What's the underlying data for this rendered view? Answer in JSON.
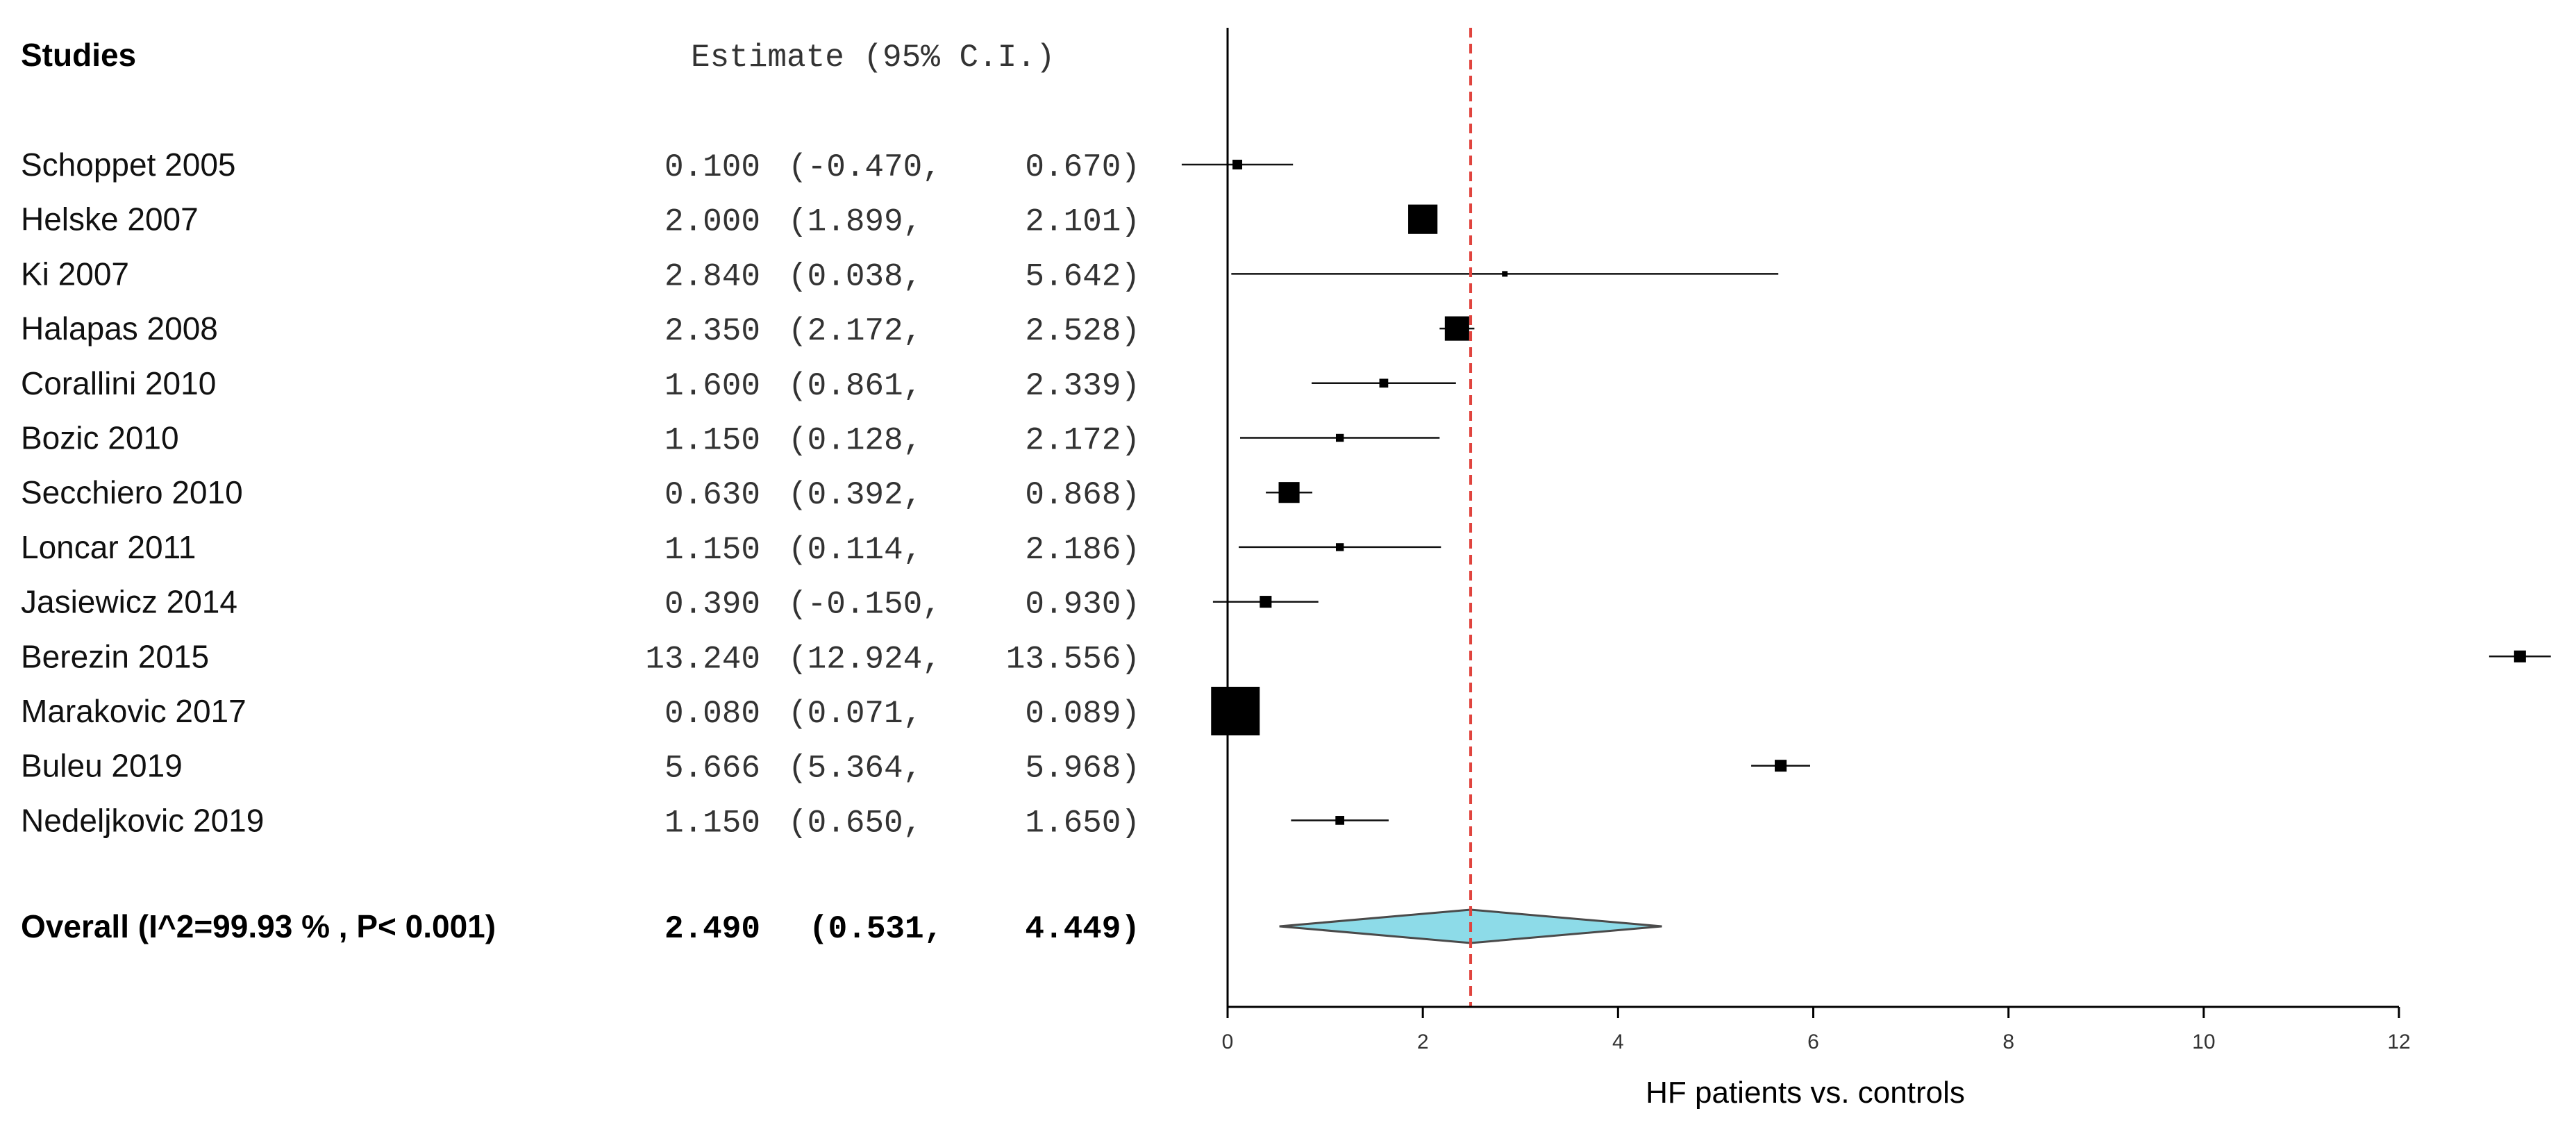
{
  "chart_data": {
    "type": "forest",
    "header": {
      "studies": "Studies",
      "estimate": "Estimate (95% C.I.)"
    },
    "studies": [
      {
        "name": "Schoppet 2005",
        "estimate": 0.1,
        "lower": -0.47,
        "upper": 0.67,
        "est_text": "0.100",
        "ci_text": "(-0.470,",
        "upper_text": "0.670)",
        "weight": 0.6
      },
      {
        "name": "Helske  2007",
        "estimate": 2.0,
        "lower": 1.899,
        "upper": 2.101,
        "est_text": "2.000",
        "ci_text": "(1.899,",
        "upper_text": "2.101)",
        "weight": 5.5
      },
      {
        "name": "Ki 2007",
        "estimate": 2.84,
        "lower": 0.038,
        "upper": 5.642,
        "est_text": "2.840",
        "ci_text": "(0.038,",
        "upper_text": "5.642)",
        "weight": 0.2
      },
      {
        "name": "Halapas 2008",
        "estimate": 2.35,
        "lower": 2.172,
        "upper": 2.528,
        "est_text": "2.350",
        "ci_text": "(2.172,",
        "upper_text": "2.528)",
        "weight": 3.8
      },
      {
        "name": "Corallini 2010",
        "estimate": 1.6,
        "lower": 0.861,
        "upper": 2.339,
        "est_text": "1.600",
        "ci_text": "(0.861,",
        "upper_text": "2.339)",
        "weight": 0.5
      },
      {
        "name": "Bozic 2010",
        "estimate": 1.15,
        "lower": 0.128,
        "upper": 2.172,
        "est_text": "1.150",
        "ci_text": "(0.128,",
        "upper_text": "2.172)",
        "weight": 0.4
      },
      {
        "name": "Secchiero  2010",
        "estimate": 0.63,
        "lower": 0.392,
        "upper": 0.868,
        "est_text": "0.630",
        "ci_text": "(0.392,",
        "upper_text": "0.868)",
        "weight": 2.8
      },
      {
        "name": "Loncar 2011",
        "estimate": 1.15,
        "lower": 0.114,
        "upper": 2.186,
        "est_text": "1.150",
        "ci_text": "(0.114,",
        "upper_text": "2.186)",
        "weight": 0.4
      },
      {
        "name": "Jasiewicz 2014",
        "estimate": 0.39,
        "lower": -0.15,
        "upper": 0.93,
        "est_text": "0.390",
        "ci_text": "(-0.150,",
        "upper_text": "0.930)",
        "weight": 0.9
      },
      {
        "name": "Berezin 2015",
        "estimate": 13.24,
        "lower": 12.924,
        "upper": 13.556,
        "est_text": "13.240",
        "ci_text": "(12.924,",
        "upper_text": "13.556)",
        "weight": 0.9
      },
      {
        "name": "Marakovic 2017",
        "estimate": 0.08,
        "lower": 0.071,
        "upper": 0.089,
        "est_text": "0.080",
        "ci_text": "(0.071,",
        "upper_text": "0.089)",
        "weight": 40
      },
      {
        "name": "Buleu 2019",
        "estimate": 5.666,
        "lower": 5.364,
        "upper": 5.968,
        "est_text": "5.666",
        "ci_text": "(5.364,",
        "upper_text": "5.968)",
        "weight": 0.9
      },
      {
        "name": "Nedeljkovic 2019",
        "estimate": 1.15,
        "lower": 0.65,
        "upper": 1.65,
        "est_text": "1.150",
        "ci_text": "(0.650,",
        "upper_text": "1.650)",
        "weight": 0.5
      }
    ],
    "overall": {
      "label": "Overall (I^2=99.93 % , P< 0.001)",
      "estimate": 2.49,
      "lower": 0.531,
      "upper": 4.449,
      "est_text": "2.490",
      "ci_text": "(0.531,",
      "upper_text": "4.449)"
    },
    "xlabel": "HF patients vs. controls",
    "xticks": [
      0,
      2,
      4,
      6,
      8,
      10,
      12
    ],
    "xlim": [
      0,
      12
    ],
    "reference_line": 2.49,
    "colors": {
      "diamond_fill": "#8ddbe8",
      "diamond_stroke": "#4a4a4a",
      "reference_line": "#e0443e",
      "marks": "#000000"
    }
  }
}
